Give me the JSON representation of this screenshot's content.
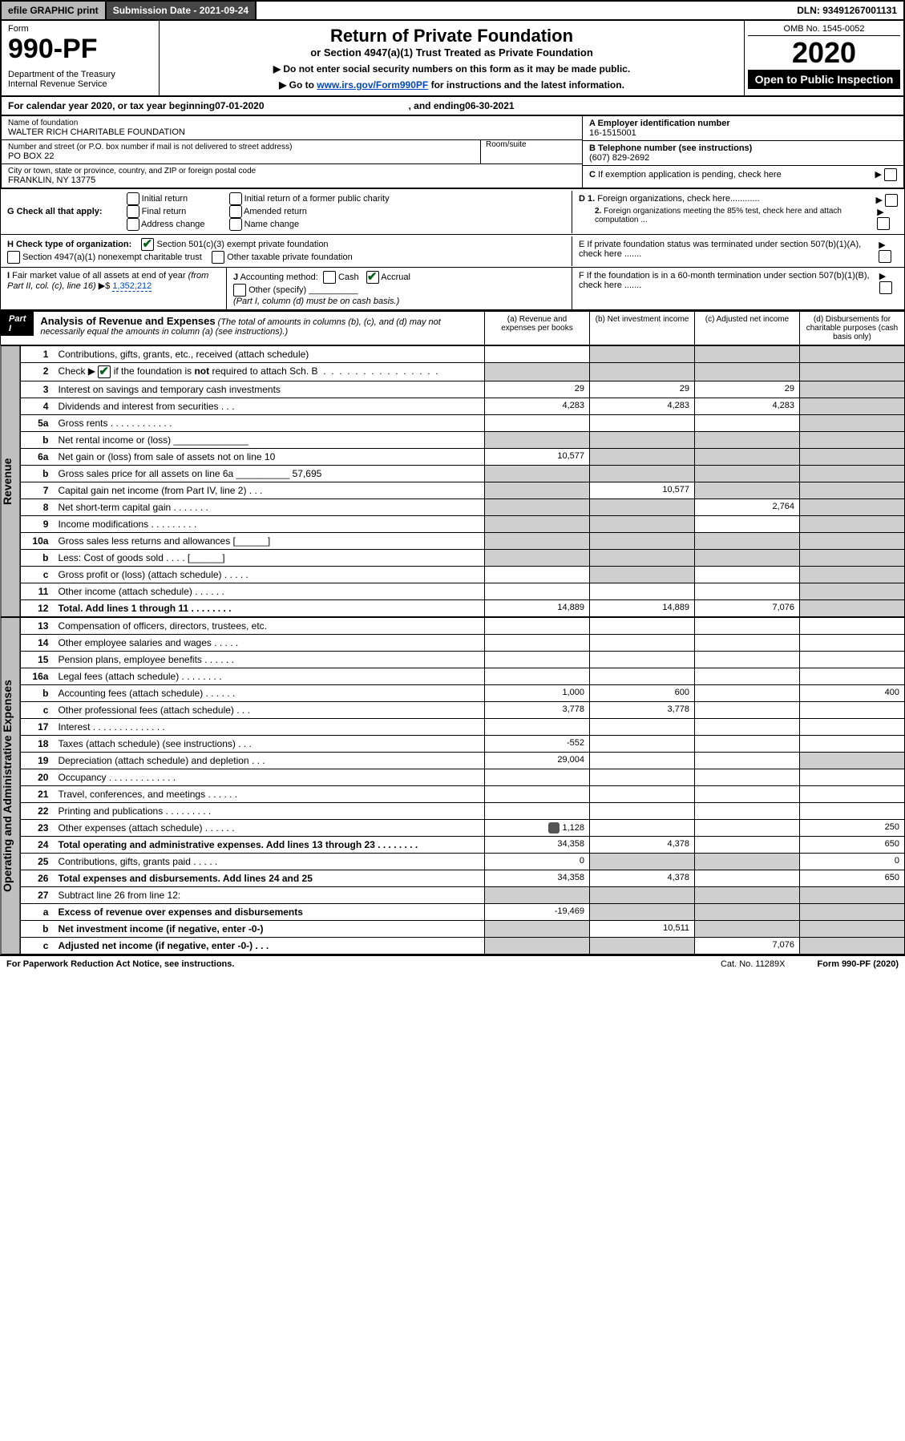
{
  "top": {
    "efile": "efile GRAPHIC print",
    "sub_date_label": "Submission Date - 2021-09-24",
    "dln": "DLN: 93491267001131"
  },
  "header": {
    "form_label": "Form",
    "form_number": "990-PF",
    "dept": "Department of the Treasury\nInternal Revenue Service",
    "title": "Return of Private Foundation",
    "subtitle": "or Section 4947(a)(1) Trust Treated as Private Foundation",
    "note1": "▶ Do not enter social security numbers on this form as it may be made public.",
    "note2_pre": "▶ Go to ",
    "note2_link": "www.irs.gov/Form990PF",
    "note2_post": " for instructions and the latest information.",
    "omb": "OMB No. 1545-0052",
    "year": "2020",
    "open": "Open to Public Inspection"
  },
  "cal_year": {
    "pre": "For calendar year 2020, or tax year beginning ",
    "begin": "07-01-2020",
    "mid": " , and ending ",
    "end": "06-30-2021"
  },
  "name_block": {
    "name_label": "Name of foundation",
    "name": "WALTER RICH CHARITABLE FOUNDATION",
    "addr_label": "Number and street (or P.O. box number if mail is not delivered to street address)",
    "addr": "PO BOX 22",
    "room_label": "Room/suite",
    "city_label": "City or town, state or province, country, and ZIP or foreign postal code",
    "city": "FRANKLIN, NY  13775"
  },
  "right_block": {
    "a_label": "A Employer identification number",
    "a_val": "16-1515001",
    "b_label": "B Telephone number (see instructions)",
    "b_val": "(607) 829-2692",
    "c_label": "C If exemption application is pending, check here",
    "d1": "D 1. Foreign organizations, check here............",
    "d2": "2. Foreign organizations meeting the 85% test, check here and attach computation ...",
    "e": "E  If private foundation status was terminated under section 507(b)(1)(A), check here .......",
    "f": "F  If the foundation is in a 60-month termination under section 507(b)(1)(B), check here ......."
  },
  "g_check": {
    "label": "G Check all that apply:",
    "opts": [
      "Initial return",
      "Final return",
      "Address change",
      "Initial return of a former public charity",
      "Amended return",
      "Name change"
    ]
  },
  "h_check": {
    "label": "H Check type of organization:",
    "opt1": "Section 501(c)(3) exempt private foundation",
    "opt2": "Section 4947(a)(1) nonexempt charitable trust",
    "opt3": "Other taxable private foundation"
  },
  "i_block": {
    "label": "I Fair market value of all assets at end of year (from Part II, col. (c), line 16)",
    "arrow": "▶$",
    "val": "1,352,212"
  },
  "j_block": {
    "label": "J Accounting method:",
    "cash": "Cash",
    "accrual": "Accrual",
    "other": "Other (specify)",
    "note": "(Part I, column (d) must be on cash basis.)"
  },
  "part1": {
    "label": "Part I",
    "title": "Analysis of Revenue and Expenses",
    "note": "(The total of amounts in columns (b), (c), and (d) may not necessarily equal the amounts in column (a) (see instructions).)",
    "col_a": "(a) Revenue and expenses per books",
    "col_b": "(b) Net investment income",
    "col_c": "(c) Adjusted net income",
    "col_d": "(d) Disbursements for charitable purposes (cash basis only)"
  },
  "side_revenue": "Revenue",
  "side_expenses": "Operating and Administrative Expenses",
  "rows": [
    {
      "n": "1",
      "d": "Contributions, gifts, grants, etc., received (attach schedule)",
      "a": "",
      "b": "shade",
      "c": "shade",
      "dd": "shade"
    },
    {
      "n": "2",
      "d": "Check ▶ ☑ if the foundation is not required to attach Sch. B  .  .  .  .  .  .  .  .  .  .  .  .  .  .  .  .",
      "a": "shade",
      "b": "shade",
      "c": "shade",
      "dd": "shade",
      "has_check": true
    },
    {
      "n": "3",
      "d": "Interest on savings and temporary cash investments",
      "a": "29",
      "b": "29",
      "c": "29",
      "dd": "shade"
    },
    {
      "n": "4",
      "d": "Dividends and interest from securities  .  .  .",
      "a": "4,283",
      "b": "4,283",
      "c": "4,283",
      "dd": "shade"
    },
    {
      "n": "5a",
      "d": "Gross rents  .  .  .  .  .  .  .  .  .  .  .  .",
      "a": "",
      "b": "",
      "c": "",
      "dd": "shade"
    },
    {
      "n": "b",
      "d": "Net rental income or (loss)  ______________",
      "a": "shade",
      "b": "shade",
      "c": "shade",
      "dd": "shade"
    },
    {
      "n": "6a",
      "d": "Net gain or (loss) from sale of assets not on line 10",
      "a": "10,577",
      "b": "shade",
      "c": "shade",
      "dd": "shade"
    },
    {
      "n": "b",
      "d": "Gross sales price for all assets on line 6a __________ 57,695",
      "a": "shade",
      "b": "shade",
      "c": "shade",
      "dd": "shade"
    },
    {
      "n": "7",
      "d": "Capital gain net income (from Part IV, line 2)  .  .  .",
      "a": "shade",
      "b": "10,577",
      "c": "shade",
      "dd": "shade"
    },
    {
      "n": "8",
      "d": "Net short-term capital gain  .  .  .  .  .  .  .",
      "a": "shade",
      "b": "shade",
      "c": "2,764",
      "dd": "shade"
    },
    {
      "n": "9",
      "d": "Income modifications  .  .  .  .  .  .  .  .  .",
      "a": "shade",
      "b": "shade",
      "c": "",
      "dd": "shade"
    },
    {
      "n": "10a",
      "d": "Gross sales less returns and allowances   [______]",
      "a": "shade",
      "b": "shade",
      "c": "shade",
      "dd": "shade"
    },
    {
      "n": "b",
      "d": "Less: Cost of goods sold  .  .  .  .   [______]",
      "a": "shade",
      "b": "shade",
      "c": "shade",
      "dd": "shade"
    },
    {
      "n": "c",
      "d": "Gross profit or (loss) (attach schedule)  .  .  .  .  .",
      "a": "",
      "b": "shade",
      "c": "",
      "dd": "shade"
    },
    {
      "n": "11",
      "d": "Other income (attach schedule)  .  .  .  .  .  .",
      "a": "",
      "b": "",
      "c": "",
      "dd": "shade"
    },
    {
      "n": "12",
      "d": "Total. Add lines 1 through 11  .  .  .  .  .  .  .  .",
      "a": "14,889",
      "b": "14,889",
      "c": "7,076",
      "dd": "shade",
      "bold": true
    }
  ],
  "rows2": [
    {
      "n": "13",
      "d": "Compensation of officers, directors, trustees, etc.",
      "a": "",
      "b": "",
      "c": "",
      "dd": ""
    },
    {
      "n": "14",
      "d": "Other employee salaries and wages  .  .  .  .  .",
      "a": "",
      "b": "",
      "c": "",
      "dd": ""
    },
    {
      "n": "15",
      "d": "Pension plans, employee benefits  .  .  .  .  .  .",
      "a": "",
      "b": "",
      "c": "",
      "dd": ""
    },
    {
      "n": "16a",
      "d": "Legal fees (attach schedule)  .  .  .  .  .  .  .  .",
      "a": "",
      "b": "",
      "c": "",
      "dd": ""
    },
    {
      "n": "b",
      "d": "Accounting fees (attach schedule)  .  .  .  .  .  .",
      "a": "1,000",
      "b": "600",
      "c": "",
      "dd": "400"
    },
    {
      "n": "c",
      "d": "Other professional fees (attach schedule)  .  .  .",
      "a": "3,778",
      "b": "3,778",
      "c": "",
      "dd": ""
    },
    {
      "n": "17",
      "d": "Interest  .  .  .  .  .  .  .  .  .  .  .  .  .  .",
      "a": "",
      "b": "",
      "c": "",
      "dd": ""
    },
    {
      "n": "18",
      "d": "Taxes (attach schedule) (see instructions)  .  .  .",
      "a": "-552",
      "b": "",
      "c": "",
      "dd": ""
    },
    {
      "n": "19",
      "d": "Depreciation (attach schedule) and depletion  .  .  .",
      "a": "29,004",
      "b": "",
      "c": "",
      "dd": "shade"
    },
    {
      "n": "20",
      "d": "Occupancy  .  .  .  .  .  .  .  .  .  .  .  .  .",
      "a": "",
      "b": "",
      "c": "",
      "dd": ""
    },
    {
      "n": "21",
      "d": "Travel, conferences, and meetings  .  .  .  .  .  .",
      "a": "",
      "b": "",
      "c": "",
      "dd": ""
    },
    {
      "n": "22",
      "d": "Printing and publications  .  .  .  .  .  .  .  .  .",
      "a": "",
      "b": "",
      "c": "",
      "dd": ""
    },
    {
      "n": "23",
      "d": "Other expenses (attach schedule)  .  .  .  .  .  .",
      "a": "1,128",
      "b": "",
      "c": "",
      "dd": "250",
      "pin": true
    },
    {
      "n": "24",
      "d": "Total operating and administrative expenses. Add lines 13 through 23  .  .  .  .  .  .  .  .",
      "a": "34,358",
      "b": "4,378",
      "c": "",
      "dd": "650",
      "bold": true
    },
    {
      "n": "25",
      "d": "Contributions, gifts, grants paid  .  .  .  .  .",
      "a": "0",
      "b": "shade",
      "c": "shade",
      "dd": "0"
    },
    {
      "n": "26",
      "d": "Total expenses and disbursements. Add lines 24 and 25",
      "a": "34,358",
      "b": "4,378",
      "c": "",
      "dd": "650",
      "bold": true
    },
    {
      "n": "27",
      "d": "Subtract line 26 from line 12:",
      "a": "shade",
      "b": "shade",
      "c": "shade",
      "dd": "shade"
    },
    {
      "n": "a",
      "d": "Excess of revenue over expenses and disbursements",
      "a": "-19,469",
      "b": "shade",
      "c": "shade",
      "dd": "shade",
      "bold": true
    },
    {
      "n": "b",
      "d": "Net investment income (if negative, enter -0-)",
      "a": "shade",
      "b": "10,511",
      "c": "shade",
      "dd": "shade",
      "bold": true
    },
    {
      "n": "c",
      "d": "Adjusted net income (if negative, enter -0-)  .  .  .",
      "a": "shade",
      "b": "shade",
      "c": "7,076",
      "dd": "shade",
      "bold": true
    }
  ],
  "footer": {
    "left": "For Paperwork Reduction Act Notice, see instructions.",
    "mid": "Cat. No. 11289X",
    "right": "Form 990-PF (2020)"
  }
}
